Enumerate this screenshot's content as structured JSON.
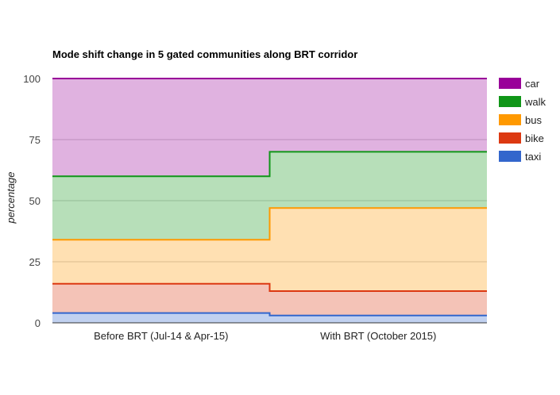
{
  "chart_data": {
    "type": "area",
    "stacked": true,
    "stepped": true,
    "title": "Mode shift change in 5 gated communities along BRT corridor",
    "xlabel": "",
    "ylabel": "percentage",
    "categories": [
      "Before BRT (Jul-14 & Apr-15)",
      "With BRT (October 2015)"
    ],
    "ylim": [
      0,
      100
    ],
    "yticks": [
      0,
      25,
      50,
      75,
      100
    ],
    "grid": true,
    "legend_position": "right",
    "series": [
      {
        "name": "taxi",
        "values": [
          4,
          3
        ],
        "color": "#3366cc"
      },
      {
        "name": "bike",
        "values": [
          12,
          10
        ],
        "color": "#dc3912"
      },
      {
        "name": "bus",
        "values": [
          18,
          34
        ],
        "color": "#ff9900"
      },
      {
        "name": "walk",
        "values": [
          26,
          23
        ],
        "color": "#109618"
      },
      {
        "name": "car",
        "values": [
          40,
          30
        ],
        "color": "#990099"
      }
    ],
    "legend_order": [
      "car",
      "walk",
      "bus",
      "bike",
      "taxi"
    ]
  }
}
